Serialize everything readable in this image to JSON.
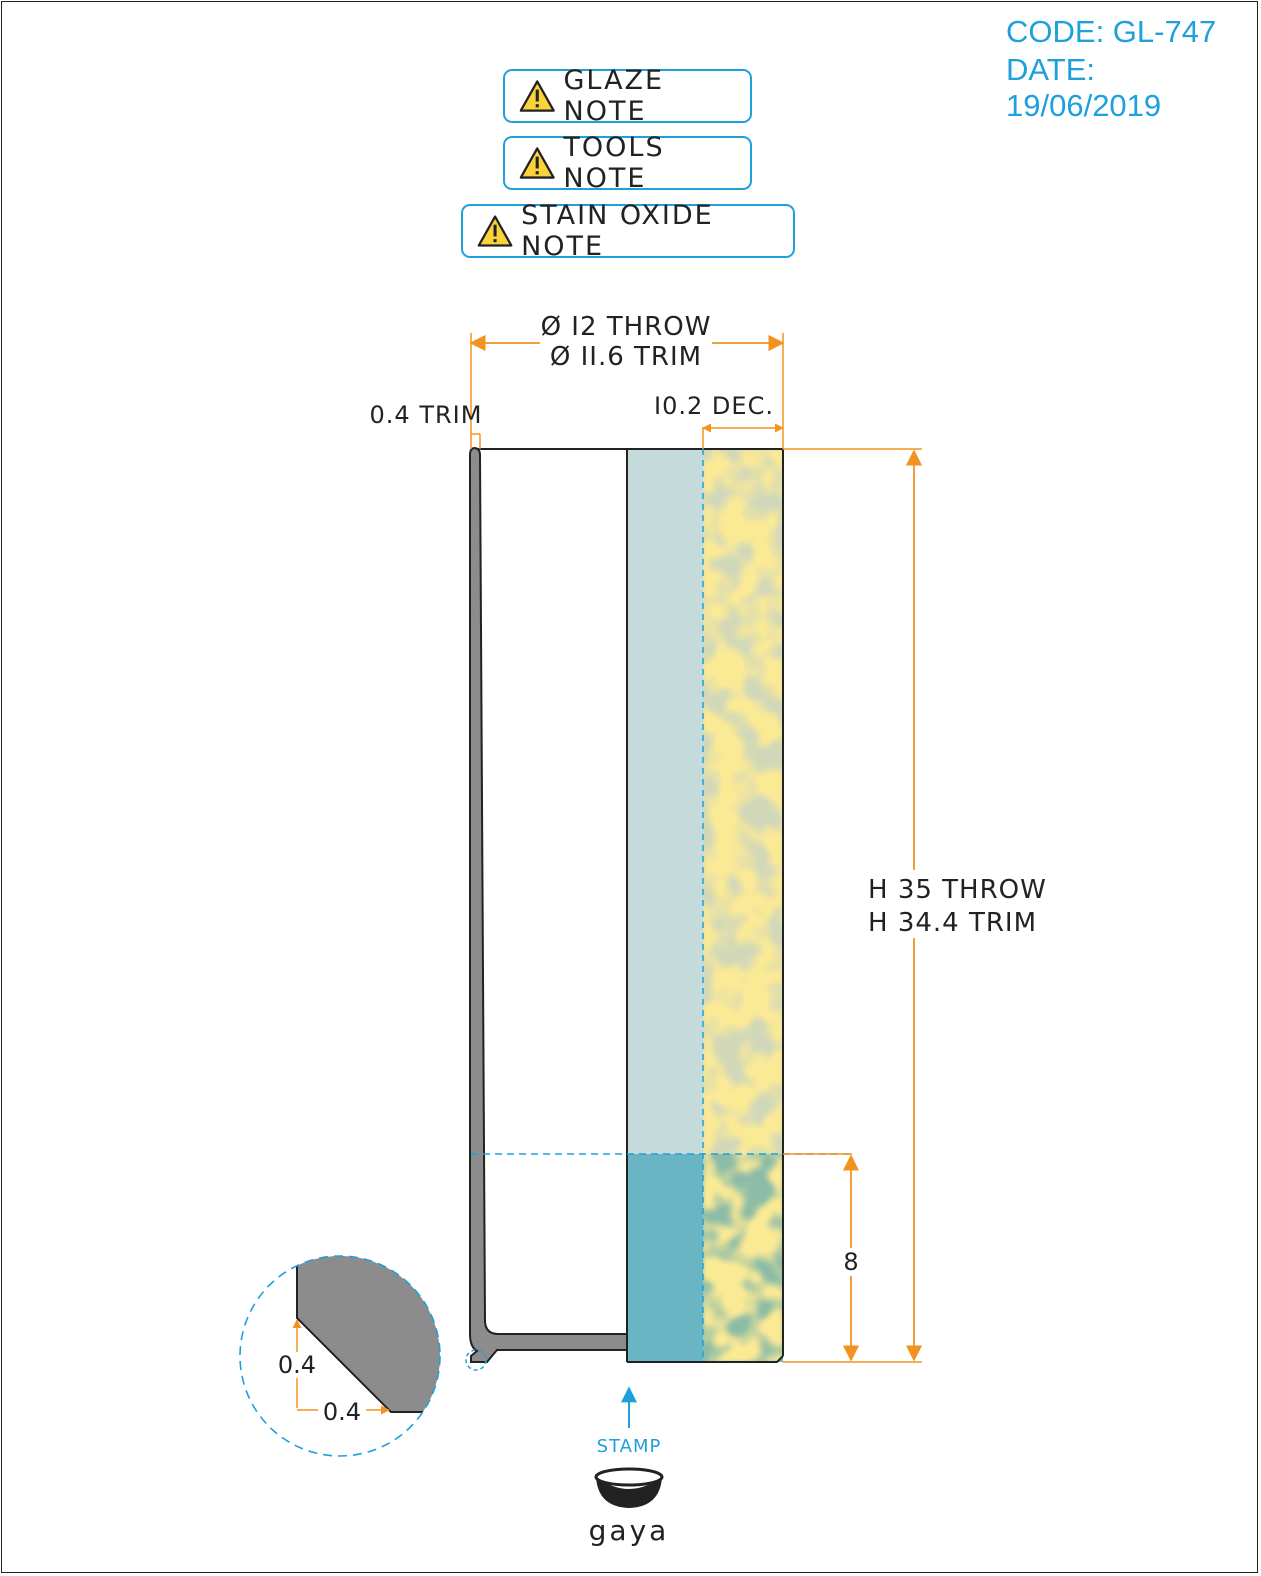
{
  "header": {
    "code": "CODE: GL-747",
    "date": "DATE: 19/06/2019"
  },
  "notes": [
    {
      "label": "GLAZE NOTE",
      "icon": "warning-icon"
    },
    {
      "label": "TOOLS NOTE",
      "icon": "warning-icon"
    },
    {
      "label": "STAIN OXIDE NOTE",
      "icon": "warning-icon"
    }
  ],
  "dimensions": {
    "diameter_throw": "Ø I2 THROW",
    "diameter_trim": "Ø II.6 TRIM",
    "wall_trim": "0.4 TRIM",
    "decoration": "I0.2 DEC.",
    "height_throw": "H 35 THROW",
    "height_trim": "H 34.4 TRIM",
    "glaze_band": "8",
    "detail_v": "0.4",
    "detail_h": "0.4"
  },
  "stamp": {
    "label": "STAMP",
    "brand": "gaya"
  },
  "colors": {
    "accent": "#1ea0dc",
    "dimension": "#f39220",
    "profile": "#8c8c8c",
    "glaze_light": "#c4dadb",
    "glaze_dark": "#69b5c3",
    "decoration": "#f7d253"
  }
}
